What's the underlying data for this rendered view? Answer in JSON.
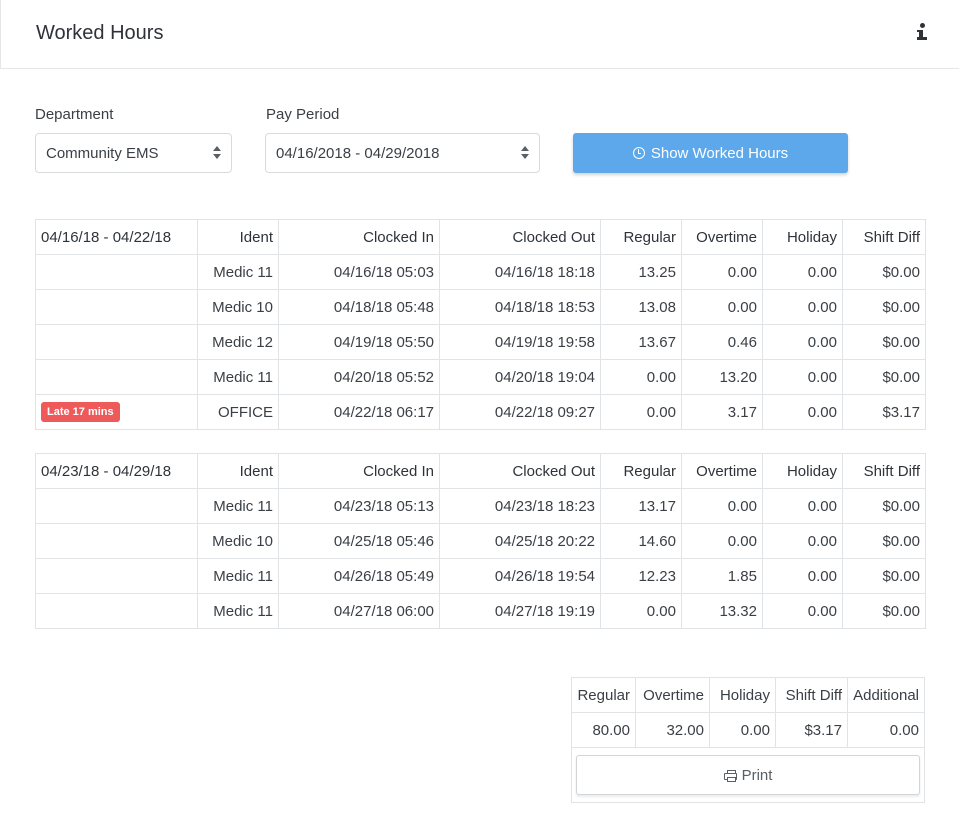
{
  "header": {
    "title": "Worked Hours",
    "info_icon": "info-icon"
  },
  "filters": {
    "department": {
      "label": "Department",
      "value": "Community EMS"
    },
    "pay_period": {
      "label": "Pay Period",
      "value": "04/16/2018 - 04/29/2018"
    },
    "show_button": {
      "label": "Show Worked Hours",
      "icon": "clock-icon"
    }
  },
  "columns": [
    "Ident",
    "Clocked In",
    "Clocked Out",
    "Regular",
    "Overtime",
    "Holiday",
    "Shift Diff"
  ],
  "weeks": [
    {
      "range": "04/16/18 - 04/22/18",
      "rows": [
        {
          "badge": "",
          "ident": "Medic 11",
          "clocked_in": "04/16/18 05:03",
          "clocked_out": "04/16/18 18:18",
          "regular": "13.25",
          "overtime": "0.00",
          "holiday": "0.00",
          "shift_diff": "$0.00"
        },
        {
          "badge": "",
          "ident": "Medic 10",
          "clocked_in": "04/18/18 05:48",
          "clocked_out": "04/18/18 18:53",
          "regular": "13.08",
          "overtime": "0.00",
          "holiday": "0.00",
          "shift_diff": "$0.00"
        },
        {
          "badge": "",
          "ident": "Medic 12",
          "clocked_in": "04/19/18 05:50",
          "clocked_out": "04/19/18 19:58",
          "regular": "13.67",
          "overtime": "0.46",
          "holiday": "0.00",
          "shift_diff": "$0.00"
        },
        {
          "badge": "",
          "ident": "Medic 11",
          "clocked_in": "04/20/18 05:52",
          "clocked_out": "04/20/18 19:04",
          "regular": "0.00",
          "overtime": "13.20",
          "holiday": "0.00",
          "shift_diff": "$0.00"
        },
        {
          "badge": "Late 17 mins",
          "ident": "OFFICE",
          "clocked_in": "04/22/18 06:17",
          "clocked_out": "04/22/18 09:27",
          "regular": "0.00",
          "overtime": "3.17",
          "holiday": "0.00",
          "shift_diff": "$3.17"
        }
      ]
    },
    {
      "range": "04/23/18 - 04/29/18",
      "rows": [
        {
          "badge": "",
          "ident": "Medic 11",
          "clocked_in": "04/23/18 05:13",
          "clocked_out": "04/23/18 18:23",
          "regular": "13.17",
          "overtime": "0.00",
          "holiday": "0.00",
          "shift_diff": "$0.00"
        },
        {
          "badge": "",
          "ident": "Medic 10",
          "clocked_in": "04/25/18 05:46",
          "clocked_out": "04/25/18 20:22",
          "regular": "14.60",
          "overtime": "0.00",
          "holiday": "0.00",
          "shift_diff": "$0.00"
        },
        {
          "badge": "",
          "ident": "Medic 11",
          "clocked_in": "04/26/18 05:49",
          "clocked_out": "04/26/18 19:54",
          "regular": "12.23",
          "overtime": "1.85",
          "holiday": "0.00",
          "shift_diff": "$0.00"
        },
        {
          "badge": "",
          "ident": "Medic 11",
          "clocked_in": "04/27/18 06:00",
          "clocked_out": "04/27/18 19:19",
          "regular": "0.00",
          "overtime": "13.32",
          "holiday": "0.00",
          "shift_diff": "$0.00"
        }
      ]
    }
  ],
  "totals": {
    "headers": [
      "Regular",
      "Overtime",
      "Holiday",
      "Shift Diff",
      "Additional"
    ],
    "values": [
      "80.00",
      "32.00",
      "0.00",
      "$3.17",
      "0.00"
    ]
  },
  "print_button": {
    "label": "Print",
    "icon": "printer-icon"
  },
  "colors": {
    "primary": "#5ca8ea",
    "late_badge": "#ee5a5a"
  }
}
